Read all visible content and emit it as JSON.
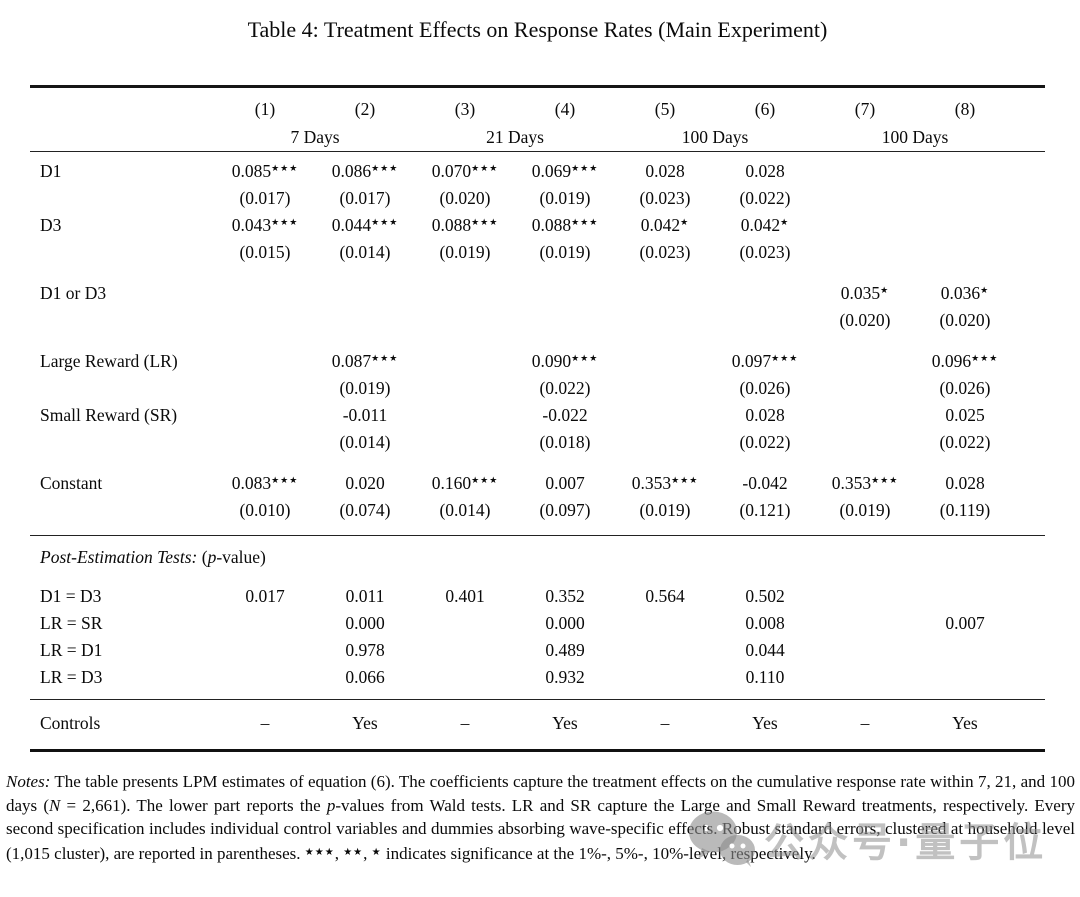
{
  "title": "Table 4: Treatment Effects on Response Rates (Main Experiment)",
  "table": {
    "column_numbers": [
      "(1)",
      "(2)",
      "(3)",
      "(4)",
      "(5)",
      "(6)",
      "(7)",
      "(8)"
    ],
    "column_groups": [
      {
        "label": "7 Days",
        "span": 2
      },
      {
        "label": "21 Days",
        "span": 2
      },
      {
        "label": "100 Days",
        "span": 2
      },
      {
        "label": "100 Days",
        "span": 2
      }
    ],
    "body_rows": [
      {
        "kind": "coef",
        "label": "D1",
        "cells": [
          "0.085***",
          "0.086***",
          "0.070***",
          "0.069***",
          "0.028",
          "0.028",
          "",
          ""
        ]
      },
      {
        "kind": "se",
        "label": "",
        "cells": [
          "(0.017)",
          "(0.017)",
          "(0.020)",
          "(0.019)",
          "(0.023)",
          "(0.022)",
          "",
          ""
        ]
      },
      {
        "kind": "coef",
        "label": "D3",
        "cells": [
          "0.043***",
          "0.044***",
          "0.088***",
          "0.088***",
          "0.042*",
          "0.042*",
          "",
          ""
        ]
      },
      {
        "kind": "se",
        "label": "",
        "cells": [
          "(0.015)",
          "(0.014)",
          "(0.019)",
          "(0.019)",
          "(0.023)",
          "(0.023)",
          "",
          ""
        ]
      },
      {
        "kind": "gap"
      },
      {
        "kind": "coef",
        "label": "D1 or D3",
        "cells": [
          "",
          "",
          "",
          "",
          "",
          "",
          "0.035*",
          "0.036*"
        ]
      },
      {
        "kind": "se",
        "label": "",
        "cells": [
          "",
          "",
          "",
          "",
          "",
          "",
          "(0.020)",
          "(0.020)"
        ]
      },
      {
        "kind": "gap"
      },
      {
        "kind": "coef",
        "label": "Large Reward (LR)",
        "cells": [
          "",
          "0.087***",
          "",
          "0.090***",
          "",
          "0.097***",
          "",
          "0.096***"
        ]
      },
      {
        "kind": "se",
        "label": "",
        "cells": [
          "",
          "(0.019)",
          "",
          "(0.022)",
          "",
          "(0.026)",
          "",
          "(0.026)"
        ]
      },
      {
        "kind": "coef",
        "label": "Small Reward (SR)",
        "cells": [
          "",
          "-0.011",
          "",
          "-0.022",
          "",
          "0.028",
          "",
          "0.025"
        ]
      },
      {
        "kind": "se",
        "label": "",
        "cells": [
          "",
          "(0.014)",
          "",
          "(0.018)",
          "",
          "(0.022)",
          "",
          "(0.022)"
        ]
      },
      {
        "kind": "gap"
      },
      {
        "kind": "coef",
        "label": "Constant",
        "cells": [
          "0.083***",
          "0.020",
          "0.160***",
          "0.007",
          "0.353***",
          "-0.042",
          "0.353***",
          "0.028"
        ]
      },
      {
        "kind": "se",
        "label": "",
        "cells": [
          "(0.010)",
          "(0.074)",
          "(0.014)",
          "(0.097)",
          "(0.019)",
          "(0.121)",
          "(0.019)",
          "(0.119)"
        ]
      }
    ],
    "post_estimation": {
      "heading_segments": [
        {
          "text": "Post-Estimation Tests:",
          "italic": true
        },
        {
          "text": " ("
        },
        {
          "text": "p",
          "italic": true
        },
        {
          "text": "-value)"
        }
      ],
      "rows": [
        {
          "label": "D1 = D3",
          "cells": [
            "0.017",
            "0.011",
            "0.401",
            "0.352",
            "0.564",
            "0.502",
            "",
            ""
          ]
        },
        {
          "label": "LR = SR",
          "cells": [
            "",
            "0.000",
            "",
            "0.000",
            "",
            "0.008",
            "",
            "0.007"
          ]
        },
        {
          "label": "LR = D1",
          "cells": [
            "",
            "0.978",
            "",
            "0.489",
            "",
            "0.044",
            "",
            ""
          ]
        },
        {
          "label": "LR = D3",
          "cells": [
            "",
            "0.066",
            "",
            "0.932",
            "",
            "0.110",
            "",
            ""
          ]
        }
      ]
    },
    "controls_row": {
      "label": "Controls",
      "cells": [
        "–",
        "Yes",
        "–",
        "Yes",
        "–",
        "Yes",
        "–",
        "Yes"
      ]
    }
  },
  "notes_segments": [
    {
      "text": "Notes:",
      "italic": true
    },
    {
      "text": " The table presents LPM estimates of equation (6). The coefficients capture the treatment effects on the cumulative response rate within 7, 21, and 100 days ("
    },
    {
      "text": "N",
      "italic": true
    },
    {
      "text": " = 2,661).  The lower part reports the "
    },
    {
      "text": "p",
      "italic": true
    },
    {
      "text": "-values from Wald tests.  LR and SR capture the Large and Small Reward treatments, respectively. Every second specification includes individual control variables and dummies absorbing wave-specific effects. Robust standard errors, clustered at household level (1,015 cluster), are reported in parentheses.  "
    },
    {
      "text": "***",
      "stars": true
    },
    {
      "text": ", "
    },
    {
      "text": "**",
      "stars": true
    },
    {
      "text": ", "
    },
    {
      "text": "*",
      "stars": true
    },
    {
      "text": " indicates significance at the 1%-, 5%-, 10%-level, respectively."
    }
  ],
  "watermark": {
    "icon": "wechat-icon",
    "text": "公众号·量子位"
  }
}
